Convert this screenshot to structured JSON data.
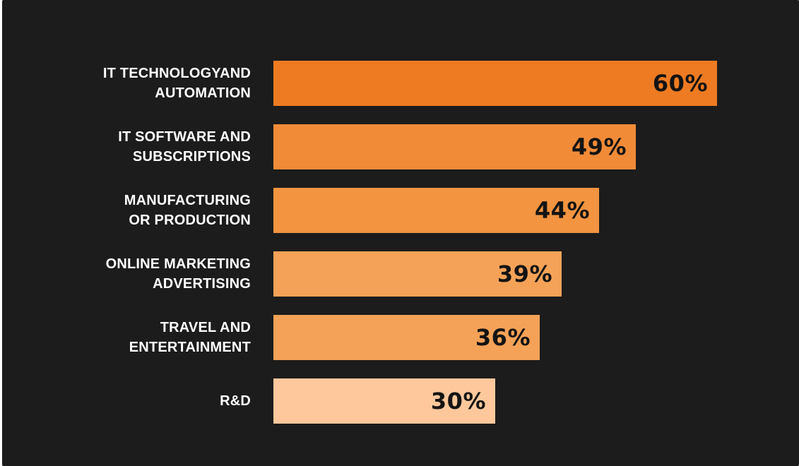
{
  "chart_data": {
    "type": "bar",
    "orientation": "horizontal",
    "categories": [
      "IT TECHNOLOGYAND\nAUTOMATION",
      "IT SOFTWARE AND\nSUBSCRIPTIONS",
      "MANUFACTURING\nOR PRODUCTION",
      "ONLINE MARKETING\nADVERTISING",
      "TRAVEL AND\nENTERTAINMENT",
      "R&D"
    ],
    "values": [
      60,
      49,
      44,
      39,
      36,
      30
    ],
    "value_labels": [
      "60%",
      "49%",
      "44%",
      "39%",
      "36%",
      "30%"
    ],
    "bar_colors": [
      "#ee7b22",
      "#f18b38",
      "#f29440",
      "#f4a257",
      "#f4a257",
      "#fec89c"
    ],
    "background": "#1c1c1c",
    "title": "",
    "xlabel": "",
    "ylabel": "",
    "xlim": [
      0,
      60
    ],
    "grid": false,
    "legend": "none"
  }
}
